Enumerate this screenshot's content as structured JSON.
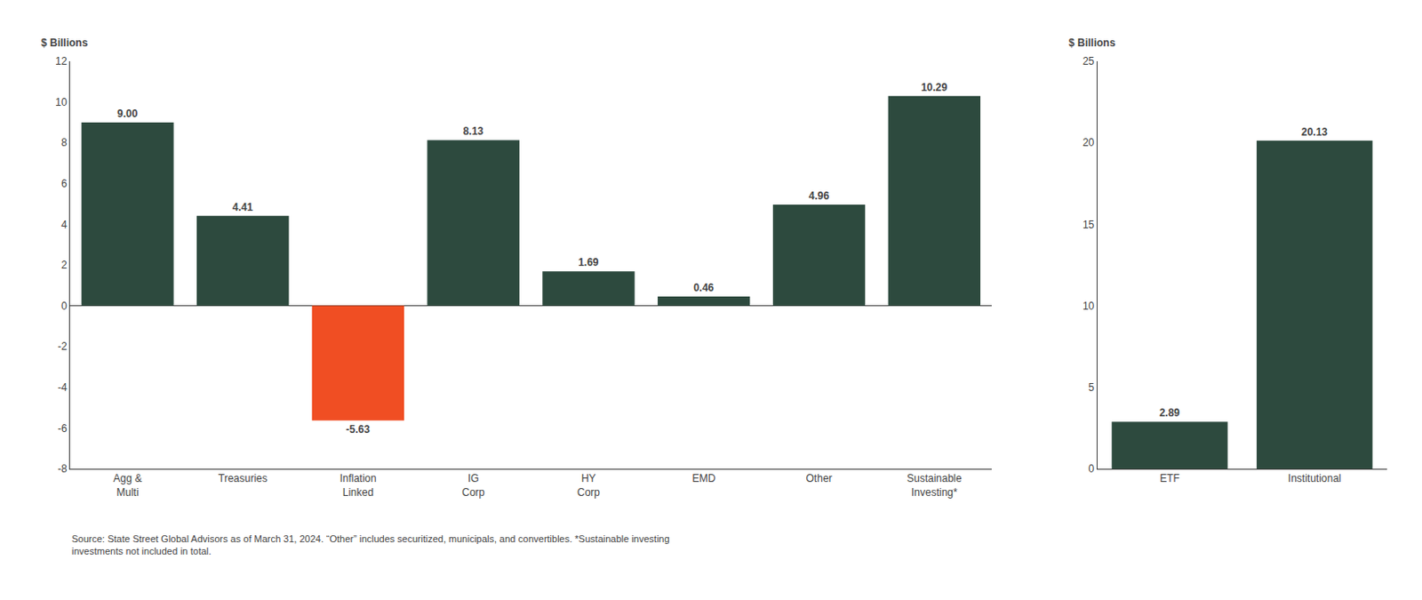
{
  "chart_data": [
    {
      "type": "bar",
      "categories": [
        "Agg &\nMulti",
        "Treasuries",
        "Inflation\nLinked",
        "IG\nCorp",
        "HY\nCorp",
        "EMD",
        "Other",
        "Sustainable\nInvesting*"
      ],
      "values": [
        9.0,
        4.41,
        -5.63,
        8.13,
        1.69,
        0.46,
        4.96,
        10.29
      ],
      "value_labels": [
        "9.00",
        "4.41",
        "-5.63",
        "8.13",
        "1.69",
        "0.46",
        "4.96",
        "10.29"
      ],
      "colors": [
        "#2d4a3e",
        "#2d4a3e",
        "#f04e23",
        "#2d4a3e",
        "#2d4a3e",
        "#2d4a3e",
        "#2d4a3e",
        "#2d4a3e"
      ],
      "ylabel": "$ Billions",
      "ylim": [
        -8,
        12
      ],
      "yticks": [
        -8,
        -6,
        -4,
        -2,
        0,
        2,
        4,
        6,
        8,
        10,
        12
      ],
      "grid": false,
      "data_labels": true,
      "footnote": "Source: State Street Global Advisors as of March 31, 2024. “Other” includes securitized, municipals, and convertibles. *Sustainable investing\ninvestments not included in total."
    },
    {
      "type": "bar",
      "categories": [
        "ETF",
        "Institutional"
      ],
      "values": [
        2.89,
        20.13
      ],
      "value_labels": [
        "2.89",
        "20.13"
      ],
      "colors": [
        "#2d4a3e",
        "#2d4a3e"
      ],
      "ylabel": "$ Billions",
      "ylim": [
        0,
        25
      ],
      "yticks": [
        0,
        5,
        10,
        15,
        20,
        25
      ],
      "grid": false,
      "data_labels": true
    }
  ]
}
